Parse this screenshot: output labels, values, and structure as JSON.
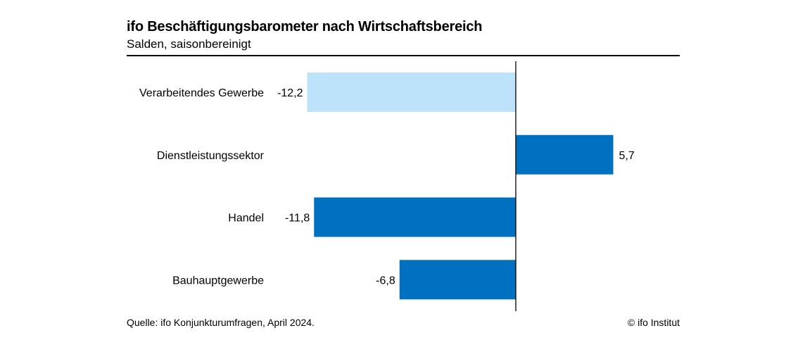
{
  "chart_data": {
    "type": "bar",
    "orientation": "horizontal",
    "title": "ifo Beschäftigungsbarometer nach Wirtschaftsbereich",
    "subtitle": "Salden, saisonbereinigt",
    "categories": [
      "Verarbeitendes Gewerbe",
      "Dienstleistungssektor",
      "Handel",
      "Bauhauptgewerbe"
    ],
    "values": [
      -12.2,
      5.7,
      -11.8,
      -6.8
    ],
    "value_labels": [
      "-12,2",
      "5,7",
      "-11,8",
      "-6,8"
    ],
    "xlim": [
      -13,
      6.5
    ],
    "grid": false,
    "legend": "none",
    "colors": {
      "default_bar": "#0070c0",
      "highlight_bar": "#bde3fb",
      "zero_line": "#000000"
    },
    "highlight_index": 0
  },
  "footer": {
    "source": "Quelle: ifo Konjunkturumfragen, April 2024.",
    "copyright": "© ifo Institut"
  }
}
